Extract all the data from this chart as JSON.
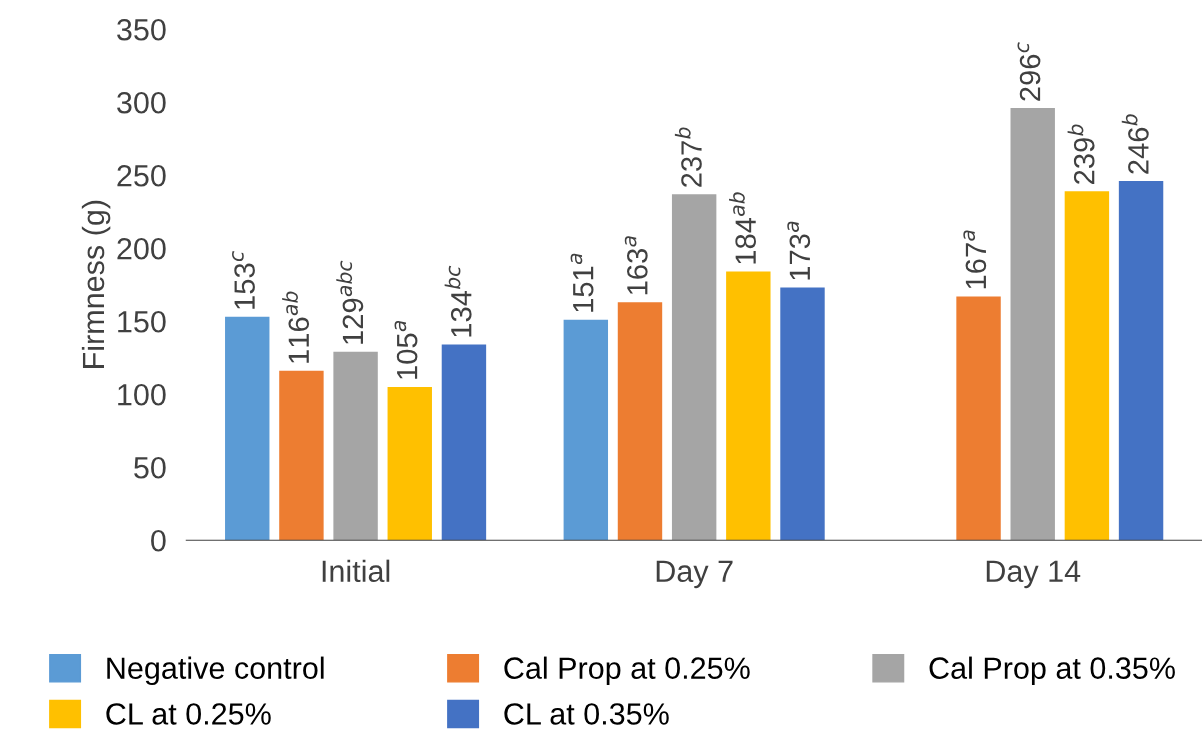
{
  "chart_data": {
    "type": "bar",
    "ylabel": "Firmness (g)",
    "categories": [
      "Initial",
      "Day 7",
      "Day 14"
    ],
    "series": [
      {
        "name": "Negative control",
        "color": "#5b9bd5",
        "values": [
          153,
          151,
          null
        ],
        "value_labels": [
          "153$^{c}$",
          "151$^{a}$",
          null
        ]
      },
      {
        "name": "Cal Prop at 0.25%",
        "color": "#ed7d31",
        "values": [
          116,
          163,
          167
        ],
        "value_labels": [
          "116$^{ab}$",
          "163$^{a}$",
          "167$^{a}$"
        ]
      },
      {
        "name": "Cal Prop at 0.35%",
        "color": "#a5a5a5",
        "values": [
          129,
          237,
          296
        ],
        "value_labels": [
          "129$^{abc}$",
          "237$^{b}$",
          "296$^{c}$"
        ]
      },
      {
        "name": "CL at 0.25%",
        "color": "#ffc000",
        "values": [
          105,
          184,
          239
        ],
        "value_labels": [
          "105$^{a}$",
          "184$^{ab}$",
          "239$^{b}$"
        ]
      },
      {
        "name": "CL at 0.35%",
        "color": "#4472c4",
        "values": [
          134,
          173,
          246
        ],
        "value_labels": [
          "134$^{bc}$",
          "173$^{a}$",
          "246$^{b}$"
        ]
      }
    ],
    "ylim": [
      0,
      350
    ],
    "yticks": [
      0,
      50,
      100,
      150,
      200,
      250,
      300,
      350
    ],
    "grid": false,
    "legend": "bottom"
  }
}
